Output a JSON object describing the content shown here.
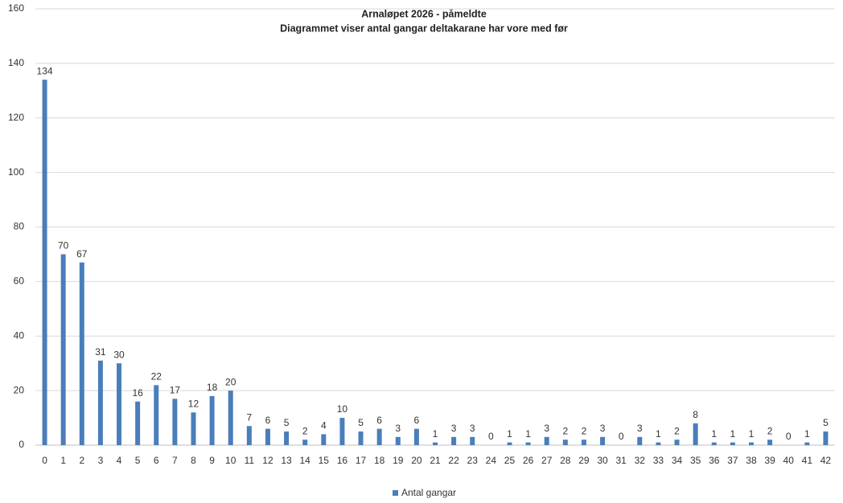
{
  "chart_data": {
    "type": "bar",
    "title": "Arnaløpet 2026 - påmeldte",
    "subtitle": "Diagrammet viser antal gangar deltakarane har vore med før",
    "categories": [
      "0",
      "1",
      "2",
      "3",
      "4",
      "5",
      "6",
      "7",
      "8",
      "9",
      "10",
      "11",
      "12",
      "13",
      "14",
      "15",
      "16",
      "17",
      "18",
      "19",
      "20",
      "21",
      "22",
      "23",
      "24",
      "25",
      "26",
      "27",
      "28",
      "29",
      "30",
      "31",
      "32",
      "33",
      "34",
      "35",
      "36",
      "37",
      "38",
      "39",
      "40",
      "41",
      "42"
    ],
    "series": [
      {
        "name": "Antal gangar",
        "color": "#4a7ebb",
        "values": [
          134,
          70,
          67,
          31,
          30,
          16,
          22,
          17,
          12,
          18,
          20,
          7,
          6,
          5,
          2,
          4,
          10,
          5,
          6,
          3,
          6,
          1,
          3,
          3,
          0,
          1,
          1,
          3,
          2,
          2,
          3,
          0,
          3,
          1,
          2,
          8,
          1,
          1,
          1,
          2,
          0,
          1,
          5
        ]
      }
    ],
    "ylim": [
      0,
      160
    ],
    "yticks": [
      0,
      20,
      40,
      60,
      80,
      100,
      120,
      140,
      160
    ],
    "grid": true,
    "legend": "bottom"
  }
}
